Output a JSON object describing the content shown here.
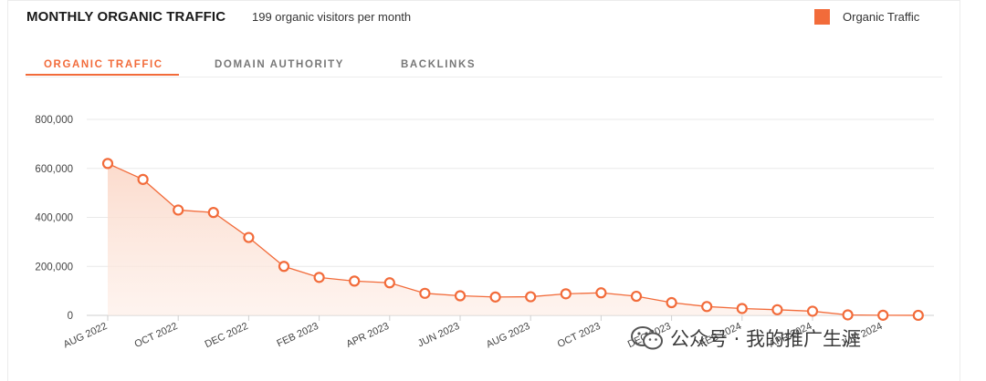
{
  "header": {
    "title": "MONTHLY ORGANIC TRAFFIC",
    "subtitle": "199 organic visitors per month",
    "legend_label": "Organic Traffic"
  },
  "tabs": [
    {
      "label": "ORGANIC TRAFFIC",
      "active": true
    },
    {
      "label": "DOMAIN AUTHORITY",
      "active": false
    },
    {
      "label": "BACKLINKS",
      "active": false
    }
  ],
  "colors": {
    "accent": "#f26b3a",
    "fill": "#fde6dc",
    "grid": "#e9e9e9"
  },
  "watermark": {
    "text": "公众号 · 我的推广生涯",
    "icon": "wechat-icon"
  },
  "chart_data": {
    "type": "line",
    "title": "MONTHLY ORGANIC TRAFFIC",
    "ylim": [
      0,
      800000
    ],
    "yticks": [
      "0",
      "200,000",
      "400,000",
      "600,000",
      "800,000"
    ],
    "x": [
      "AUG 2022",
      "SEP 2022",
      "OCT 2022",
      "NOV 2022",
      "DEC 2022",
      "JAN 2023",
      "FEB 2023",
      "MAR 2023",
      "APR 2023",
      "MAY 2023",
      "JUN 2023",
      "JUL 2023",
      "AUG 2023",
      "SEP 2023",
      "OCT 2023",
      "NOV 2023",
      "DEC 2023",
      "JAN 2024",
      "FEB 2024",
      "MAR 2024",
      "APR 2024",
      "MAY 2024",
      "JUN 2024",
      "JUL 2024"
    ],
    "xtick_labels": [
      "AUG 2022",
      "OCT 2022",
      "DEC 2022",
      "FEB 2023",
      "APR 2023",
      "JUN 2023",
      "AUG 2023",
      "OCT 2023",
      "DEC 2023",
      "FEB 2024",
      "APR 2024",
      "JUN 2024"
    ],
    "series": [
      {
        "name": "Organic Traffic",
        "values": [
          620000,
          555000,
          430000,
          420000,
          318000,
          200000,
          155000,
          140000,
          133000,
          90000,
          80000,
          75000,
          76000,
          88000,
          92000,
          78000,
          52000,
          36000,
          28000,
          23000,
          17000,
          2000,
          500,
          199
        ]
      }
    ],
    "grid": true,
    "legend_position": "top-right"
  }
}
